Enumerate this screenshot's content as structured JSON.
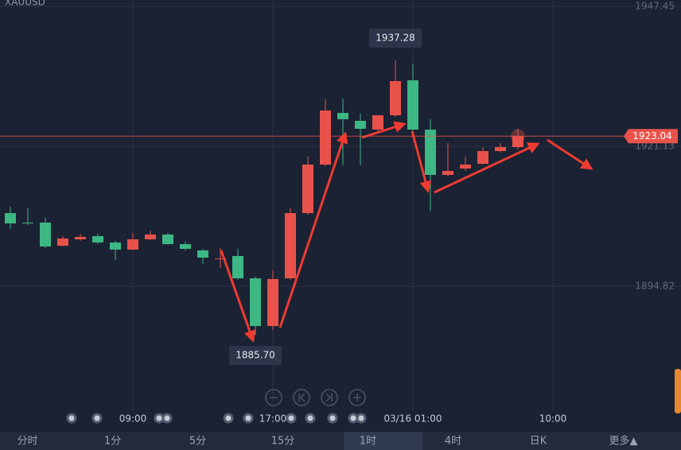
{
  "chart_data": {
    "type": "candlestick",
    "symbol": "XAUUSD",
    "open": [
      1908.58,
      1906.79,
      1906.79,
      1902.45,
      1903.65,
      1904.25,
      1903.05,
      1901.71,
      1903.65,
      1904.55,
      1902.75,
      1901.56,
      1899.91,
      1900.51,
      1896.32,
      1887.35,
      1896.32,
      1908.58,
      1917.7,
      1927.42,
      1925.93,
      1924.28,
      1926.97,
      1933.55,
      1924.28,
      1915.76,
      1916.96,
      1917.85,
      1920.24,
      1920.99
    ],
    "high": [
      1909.78,
      1909.48,
      1907.69,
      1904.25,
      1904.7,
      1904.7,
      1903.35,
      1904.85,
      1905.29,
      1904.85,
      1903.2,
      1901.86,
      1902.01,
      1901.86,
      1896.62,
      1897.82,
      1909.48,
      1919.2,
      1929.96,
      1930.11,
      1927.27,
      1926.97,
      1937.28,
      1936.69,
      1926.22,
      1921.74,
      1919.2,
      1920.99,
      1921.74,
      1924.43
    ],
    "low": [
      1905.59,
      1906.34,
      1902.01,
      1902.3,
      1903.35,
      1902.75,
      1899.76,
      1901.71,
      1903.5,
      1902.6,
      1901.56,
      1899.02,
      1898.27,
      1896.03,
      1885.7,
      1886.61,
      1896.03,
      1908.28,
      1917.4,
      1917.55,
      1917.55,
      1923.53,
      1926.67,
      1923.98,
      1909.03,
      1915.46,
      1916.51,
      1917.7,
      1919.95,
      1920.54
    ],
    "close": [
      1906.64,
      1906.64,
      1902.3,
      1903.8,
      1904.1,
      1903.05,
      1901.71,
      1903.65,
      1904.55,
      1902.75,
      1901.86,
      1900.21,
      1900.06,
      1896.32,
      1887.35,
      1896.18,
      1908.58,
      1917.7,
      1927.87,
      1926.22,
      1924.43,
      1926.97,
      1933.4,
      1924.28,
      1915.76,
      1916.51,
      1917.7,
      1920.24,
      1920.99,
      1923.04
    ],
    "up_color": "#e9524a",
    "down_color": "#3db783",
    "ylim": [
      1871.36,
      1948.65
    ],
    "yticks": [
      1947.45,
      1921.13,
      1894.82
    ],
    "x_labels": [
      "09:00",
      "17:00",
      "03/16 01:00",
      "10:00"
    ],
    "annotations": [
      {
        "value": 1937.28,
        "label": "1937.28"
      },
      {
        "value": 1885.7,
        "label": "1885.70"
      }
    ],
    "last_price": 1923.04,
    "grid": true
  },
  "tabs": [
    "分时",
    "1分",
    "5分",
    "15分",
    "1时",
    "4时",
    "日K",
    "更多▲"
  ],
  "active_tab": 4
}
